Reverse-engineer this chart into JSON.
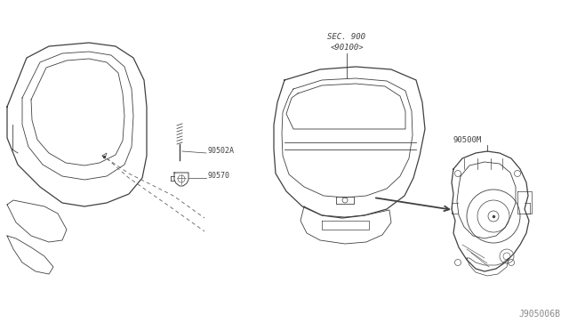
{
  "background_color": "#ffffff",
  "line_color": "#404040",
  "label_color": "#404040",
  "dashed_color": "#606060",
  "fig_width": 6.4,
  "fig_height": 3.72,
  "dpi": 100,
  "watermark": "J905006B",
  "sec_label": "SEC. 900",
  "sec_label2": "<90100>",
  "label_90502A": "90502A",
  "label_90570": "90570",
  "label_90500M": "90500M"
}
